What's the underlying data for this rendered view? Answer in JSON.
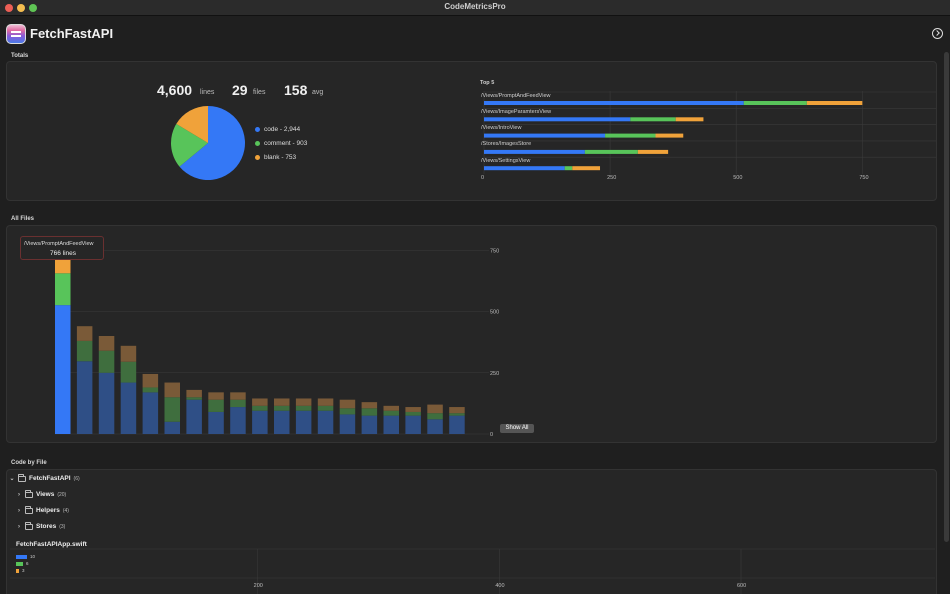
{
  "window": {
    "title": "CodeMetricsPro"
  },
  "header": {
    "app_name": "FetchFastAPI",
    "icons": [
      "app-icon",
      "share-icon"
    ]
  },
  "colors": {
    "code": "#3478f6",
    "comment": "#58c45a",
    "blank": "#f0a23a",
    "code_dim": "#2f4f86",
    "comment_dim": "#3f6e3e",
    "blank_dim": "#7a5a38"
  },
  "totals": {
    "section_label": "Totals",
    "lines": "4,600",
    "lines_unit": "lines",
    "files": "29",
    "files_unit": "files",
    "avg": "158",
    "avg_unit": "avg",
    "legend": [
      {
        "label": "code - 2,944"
      },
      {
        "label": "comment - 903"
      },
      {
        "label": "blank - 753"
      }
    ]
  },
  "top5": {
    "title": "Top 5",
    "items": [
      {
        "name": "/Views/PromptAndFeedView"
      },
      {
        "name": "/Views/ImageParamtersView"
      },
      {
        "name": "/Views/IntroView"
      },
      {
        "name": "/Stores/ImagesStore"
      },
      {
        "name": "/Views/SettingsView"
      }
    ],
    "ticks": [
      "0",
      "250",
      "500",
      "750"
    ]
  },
  "all_files": {
    "section_label": "All Files",
    "tooltip_name": "/Views/PromptAndFeedView",
    "tooltip_value": "766 lines",
    "ticks": [
      "750",
      "500",
      "250",
      "0"
    ],
    "show_all_label": "Show All"
  },
  "code_by_file": {
    "section_label": "Code by File",
    "root": {
      "name": "FetchFastAPI",
      "count": "(6)"
    },
    "children": [
      {
        "name": "Views",
        "count": "(20)"
      },
      {
        "name": "Helpers",
        "count": "(4)"
      },
      {
        "name": "Stores",
        "count": "(3)"
      }
    ],
    "file": {
      "name": "FetchFastAPIApp.swift",
      "legend": [
        {
          "label": "10"
        },
        {
          "label": "6"
        },
        {
          "label": "3"
        }
      ],
      "ticks": [
        "200",
        "400",
        "600"
      ]
    }
  },
  "chart_data": [
    {
      "type": "pie",
      "categories": [
        "code",
        "comment",
        "blank"
      ],
      "values": [
        2944,
        903,
        753
      ]
    },
    {
      "type": "bar",
      "orientation": "horizontal",
      "stacked": true,
      "title": "Top 5",
      "categories": [
        "/Views/PromptAndFeedView",
        "/Views/ImageParamtersView",
        "/Views/IntroView",
        "/Stores/ImagesStore",
        "/Views/SettingsView"
      ],
      "series": [
        {
          "name": "code",
          "values": [
            515,
            290,
            240,
            200,
            160
          ]
        },
        {
          "name": "comment",
          "values": [
            125,
            90,
            100,
            105,
            15
          ]
        },
        {
          "name": "blank",
          "values": [
            110,
            55,
            55,
            60,
            55
          ]
        }
      ],
      "xlim": [
        0,
        900
      ],
      "xticks": [
        0,
        250,
        500,
        750
      ],
      "grid": true
    },
    {
      "type": "bar",
      "stacked": true,
      "title": "All Files",
      "series": [
        {
          "name": "code",
          "values": [
            526,
            297,
            250,
            210,
            170,
            50,
            140,
            90,
            110,
            95,
            95,
            95,
            95,
            80,
            75,
            75,
            75,
            60,
            75
          ]
        },
        {
          "name": "comment",
          "values": [
            130,
            83,
            90,
            85,
            20,
            100,
            10,
            50,
            30,
            20,
            20,
            20,
            20,
            25,
            30,
            20,
            15,
            25,
            10
          ]
        },
        {
          "name": "blank",
          "values": [
            110,
            60,
            60,
            65,
            55,
            60,
            30,
            30,
            30,
            30,
            30,
            30,
            30,
            35,
            25,
            20,
            20,
            35,
            25
          ]
        }
      ],
      "ylim": [
        0,
        800
      ],
      "yticks": [
        0,
        250,
        500,
        750
      ],
      "highlighted_index": 0,
      "grid": true
    },
    {
      "type": "bar",
      "orientation": "horizontal",
      "stacked": true,
      "title": "FetchFastAPIApp.swift",
      "categories": [
        "FetchFastAPIApp.swift"
      ],
      "series": [
        {
          "name": "code",
          "values": [
            10
          ]
        },
        {
          "name": "comment",
          "values": [
            6
          ]
        },
        {
          "name": "blank",
          "values": [
            3
          ]
        }
      ],
      "xticks": [
        200,
        400,
        600
      ]
    }
  ]
}
